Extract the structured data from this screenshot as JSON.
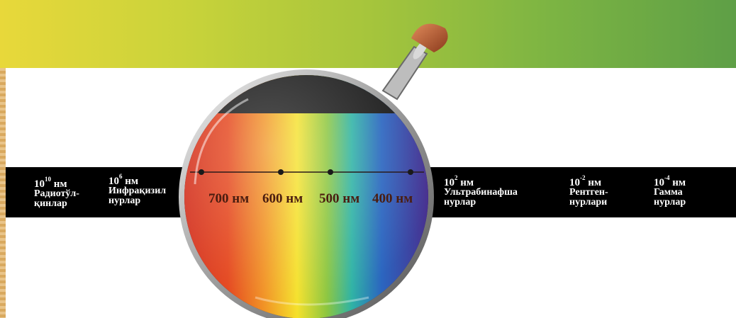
{
  "spectrum": {
    "gamma_bands": [
      {
        "exp_base": "10",
        "exp": "10",
        "unit": "нм",
        "name_line1": "Радиотўл-",
        "name_line2": "қинлар"
      },
      {
        "exp_base": "10",
        "exp": "6",
        "unit": "нм",
        "name_line1": "Инфрақизил",
        "name_line2": "нурлар"
      },
      {
        "exp_base": "10",
        "exp": "2",
        "unit": "нм",
        "name_line1": "Ультрабинафша",
        "name_line2": "нурлар"
      },
      {
        "exp_base": "10",
        "exp": "-2",
        "unit": "нм",
        "name_line1": "Рентген-",
        "name_line2": "нурлари"
      },
      {
        "exp_base": "10",
        "exp": "-4",
        "unit": "нм",
        "name_line1": "Гамма",
        "name_line2": "нурлар"
      }
    ],
    "visible_labels": [
      "700 нм",
      "600 нм",
      "500 нм",
      "400 нм"
    ]
  },
  "colors": {
    "band_start": "#e8d83a",
    "band_end": "#5e9f46",
    "scale_bar": "#000000",
    "label_text": "#ffffff",
    "wavelength_text": "#4a1d10"
  },
  "icons": {
    "magnifier": "magnifying-glass-icon"
  }
}
